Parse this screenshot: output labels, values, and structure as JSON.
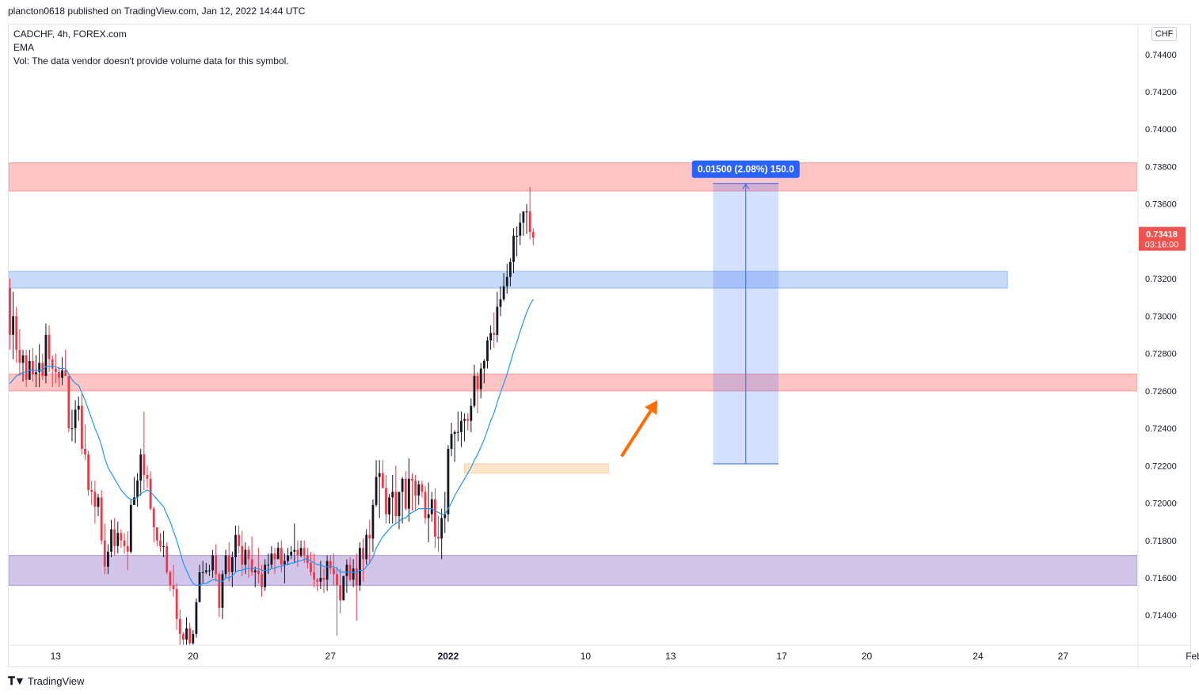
{
  "publisher_line": "plancton0618 published on TradingView.com, Jan 12, 2022 14:44 UTC",
  "legend": {
    "symbol": "CADCHF, 4h, FOREX.com",
    "indicator": "EMA",
    "volume_note": "Vol: The data vendor doesn't provide volume data for this symbol."
  },
  "currency": "CHF",
  "footer": {
    "brand": "TradingView",
    "logo_icon": "tradingview-logo-icon"
  },
  "price_tag": {
    "price": "0.73418",
    "countdown": "03:16:00",
    "value": 0.73418
  },
  "measure_label": "0.01500 (2.08%) 150.0",
  "colors": {
    "bull": "#131722",
    "bear": "#f23645",
    "ema": "#2196f3",
    "resistance_zone": "#ff8a8a",
    "blue_zone": "#90b6f5",
    "purple_zone": "#a58bd6",
    "orange_zone": "#ffcc99",
    "arrow": "#ff6d00",
    "measure_fill": "#2962ff",
    "price_tag": "#ef5350"
  },
  "chart_data": {
    "type": "candlestick",
    "symbol": "CADCHF",
    "timeframe": "4h",
    "ylim": [
      0.7124,
      0.7456
    ],
    "y_ticks": [
      "0.74400",
      "0.74200",
      "0.74000",
      "0.73800",
      "0.73600",
      "0.73200",
      "0.73000",
      "0.72800",
      "0.72600",
      "0.72400",
      "0.72200",
      "0.72000",
      "0.71800",
      "0.71600",
      "0.71400"
    ],
    "y_tick_values": [
      0.744,
      0.742,
      0.74,
      0.738,
      0.736,
      0.732,
      0.73,
      0.728,
      0.726,
      0.724,
      0.722,
      0.72,
      0.718,
      0.716,
      0.714
    ],
    "x_ticks": [
      {
        "label": "13",
        "bar": 14
      },
      {
        "label": "20",
        "bar": 56
      },
      {
        "label": "27",
        "bar": 98
      },
      {
        "label": "2022",
        "bar": 134
      },
      {
        "label": "10",
        "bar": 176
      },
      {
        "label": "13",
        "bar": 202
      },
      {
        "label": "17",
        "bar": 236
      },
      {
        "label": "20",
        "bar": 262
      },
      {
        "label": "24",
        "bar": 296
      },
      {
        "label": "27",
        "bar": 322
      },
      {
        "label": "Feb",
        "bar": 362
      }
    ],
    "zones": [
      {
        "name": "resistance-zone-top",
        "from_bar": -3,
        "to_bar": 400,
        "low": 0.7367,
        "high": 0.7382,
        "color": "resistance_zone"
      },
      {
        "name": "blue-zone",
        "from_bar": -3,
        "to_bar": 305,
        "low": 0.7315,
        "high": 0.7324,
        "color": "blue_zone"
      },
      {
        "name": "resistance-zone-mid",
        "from_bar": -3,
        "to_bar": 400,
        "low": 0.726,
        "high": 0.7269,
        "color": "resistance_zone"
      },
      {
        "name": "purple-zone",
        "from_bar": -3,
        "to_bar": 400,
        "low": 0.7156,
        "high": 0.7172,
        "color": "purple_zone"
      },
      {
        "name": "orange-zone",
        "from_bar": 139,
        "to_bar": 183,
        "low": 0.7216,
        "high": 0.7221,
        "color": "orange_zone"
      }
    ],
    "measure": {
      "from_bar": 215,
      "to_bar": 235,
      "low": 0.7221,
      "high": 0.7371
    },
    "arrow": {
      "from": [
        0.7225,
        187
      ],
      "to": [
        0.7255,
        198
      ]
    },
    "candles": [
      [
        0.7315,
        0.732,
        0.7282,
        0.729
      ],
      [
        0.729,
        0.7313,
        0.7277,
        0.73
      ],
      [
        0.73,
        0.7305,
        0.7275,
        0.7282
      ],
      [
        0.7282,
        0.7293,
        0.7268,
        0.7275
      ],
      [
        0.7275,
        0.7282,
        0.7265,
        0.7279
      ],
      [
        0.7279,
        0.7282,
        0.7262,
        0.7266
      ],
      [
        0.7266,
        0.7282,
        0.7266,
        0.7276
      ],
      [
        0.7276,
        0.7283,
        0.7265,
        0.7269
      ],
      [
        0.7269,
        0.7279,
        0.7262,
        0.727
      ],
      [
        0.727,
        0.7285,
        0.7262,
        0.7275
      ],
      [
        0.7275,
        0.728,
        0.7266,
        0.7268
      ],
      [
        0.7268,
        0.7296,
        0.7264,
        0.729
      ],
      [
        0.729,
        0.7295,
        0.727,
        0.7277
      ],
      [
        0.7277,
        0.7279,
        0.7262,
        0.7272
      ],
      [
        0.7272,
        0.728,
        0.7264,
        0.727
      ],
      [
        0.727,
        0.7273,
        0.7262,
        0.7267
      ],
      [
        0.7267,
        0.7278,
        0.7263,
        0.7271
      ],
      [
        0.7271,
        0.7282,
        0.7268,
        0.7268
      ],
      [
        0.7268,
        0.7268,
        0.7238,
        0.724
      ],
      [
        0.724,
        0.725,
        0.7233,
        0.724
      ],
      [
        0.724,
        0.7255,
        0.7232,
        0.725
      ],
      [
        0.725,
        0.7257,
        0.7244,
        0.7252
      ],
      [
        0.7252,
        0.7259,
        0.7226,
        0.7229
      ],
      [
        0.7229,
        0.7242,
        0.7223,
        0.7226
      ],
      [
        0.7226,
        0.7228,
        0.7204,
        0.7207
      ],
      [
        0.7207,
        0.7212,
        0.7199,
        0.7206
      ],
      [
        0.7206,
        0.7212,
        0.7189,
        0.7198
      ],
      [
        0.7198,
        0.7205,
        0.7193,
        0.7203
      ],
      [
        0.7203,
        0.7207,
        0.7178,
        0.718
      ],
      [
        0.718,
        0.7189,
        0.7162,
        0.7166
      ],
      [
        0.7166,
        0.7178,
        0.7162,
        0.7174
      ],
      [
        0.7174,
        0.7191,
        0.7171,
        0.7186
      ],
      [
        0.7186,
        0.7192,
        0.7172,
        0.7177
      ],
      [
        0.7177,
        0.719,
        0.7173,
        0.7184
      ],
      [
        0.7184,
        0.7186,
        0.7176,
        0.718
      ],
      [
        0.718,
        0.7184,
        0.7173,
        0.7177
      ],
      [
        0.7177,
        0.7185,
        0.7164,
        0.7174
      ],
      [
        0.7174,
        0.7202,
        0.7173,
        0.7199
      ],
      [
        0.7199,
        0.7214,
        0.7199,
        0.7203
      ],
      [
        0.7203,
        0.7216,
        0.7198,
        0.7212
      ],
      [
        0.7212,
        0.7229,
        0.7204,
        0.7226
      ],
      [
        0.7226,
        0.7249,
        0.7207,
        0.7215
      ],
      [
        0.7215,
        0.722,
        0.7208,
        0.7213
      ],
      [
        0.7213,
        0.7217,
        0.7196,
        0.7197
      ],
      [
        0.7197,
        0.7198,
        0.7179,
        0.7187
      ],
      [
        0.7187,
        0.7187,
        0.7177,
        0.718
      ],
      [
        0.718,
        0.7184,
        0.7174,
        0.7177
      ],
      [
        0.7177,
        0.7185,
        0.7171,
        0.7177
      ],
      [
        0.7177,
        0.7179,
        0.7162,
        0.7163
      ],
      [
        0.7163,
        0.7164,
        0.7153,
        0.7156
      ],
      [
        0.7156,
        0.7167,
        0.715,
        0.7154
      ],
      [
        0.7154,
        0.7157,
        0.7132,
        0.7138
      ],
      [
        0.7138,
        0.7143,
        0.7124,
        0.713
      ],
      [
        0.713,
        0.7131,
        0.7124,
        0.7127
      ],
      [
        0.7127,
        0.7139,
        0.7123,
        0.7133
      ],
      [
        0.7133,
        0.7136,
        0.7118,
        0.7125
      ],
      [
        0.7125,
        0.7132,
        0.712,
        0.713
      ],
      [
        0.713,
        0.7149,
        0.7128,
        0.7147
      ],
      [
        0.7147,
        0.7167,
        0.7147,
        0.7163
      ],
      [
        0.7163,
        0.7169,
        0.7157,
        0.7163
      ],
      [
        0.7163,
        0.7168,
        0.7162,
        0.7164
      ],
      [
        0.7164,
        0.7167,
        0.7161,
        0.7164
      ],
      [
        0.7164,
        0.7175,
        0.716,
        0.7172
      ],
      [
        0.7172,
        0.7178,
        0.7158,
        0.7162
      ],
      [
        0.7162,
        0.7163,
        0.7139,
        0.7144
      ],
      [
        0.7144,
        0.7164,
        0.7138,
        0.7162
      ],
      [
        0.7162,
        0.7175,
        0.716,
        0.7172
      ],
      [
        0.7172,
        0.7179,
        0.7158,
        0.7163
      ],
      [
        0.7163,
        0.7174,
        0.7155,
        0.7171
      ],
      [
        0.7171,
        0.7188,
        0.7163,
        0.7183
      ],
      [
        0.7183,
        0.7188,
        0.7173,
        0.7177
      ],
      [
        0.7177,
        0.7185,
        0.7161,
        0.7167
      ],
      [
        0.7167,
        0.7179,
        0.7162,
        0.7175
      ],
      [
        0.7175,
        0.7177,
        0.716,
        0.717
      ],
      [
        0.717,
        0.7182,
        0.7161,
        0.7163
      ],
      [
        0.7163,
        0.7166,
        0.7155,
        0.7164
      ],
      [
        0.7164,
        0.7176,
        0.7157,
        0.7162
      ],
      [
        0.7162,
        0.7167,
        0.715,
        0.7155
      ],
      [
        0.7155,
        0.717,
        0.7153,
        0.7167
      ],
      [
        0.7167,
        0.7173,
        0.7162,
        0.7167
      ],
      [
        0.7167,
        0.7177,
        0.7165,
        0.7173
      ],
      [
        0.7173,
        0.7176,
        0.7162,
        0.717
      ],
      [
        0.717,
        0.7179,
        0.717,
        0.7176
      ],
      [
        0.7176,
        0.718,
        0.7163,
        0.7167
      ],
      [
        0.7167,
        0.7173,
        0.7157,
        0.7169
      ],
      [
        0.7169,
        0.7176,
        0.7167,
        0.7172
      ],
      [
        0.7172,
        0.7177,
        0.717,
        0.7174
      ],
      [
        0.7174,
        0.7189,
        0.7168,
        0.7175
      ],
      [
        0.7175,
        0.718,
        0.7166,
        0.7172
      ],
      [
        0.7172,
        0.718,
        0.7171,
        0.7176
      ],
      [
        0.7176,
        0.718,
        0.7168,
        0.7172
      ],
      [
        0.7172,
        0.7176,
        0.7165,
        0.7168
      ],
      [
        0.7168,
        0.7174,
        0.7161,
        0.7163
      ],
      [
        0.7163,
        0.7173,
        0.7155,
        0.7159
      ],
      [
        0.7159,
        0.716,
        0.7153,
        0.7158
      ],
      [
        0.7158,
        0.7169,
        0.7154,
        0.716
      ],
      [
        0.716,
        0.7165,
        0.7152,
        0.7159
      ],
      [
        0.7159,
        0.7172,
        0.7153,
        0.7169
      ],
      [
        0.7169,
        0.7172,
        0.7162,
        0.7165
      ],
      [
        0.7165,
        0.7173,
        0.7156,
        0.7162
      ],
      [
        0.7162,
        0.7166,
        0.7129,
        0.7156
      ],
      [
        0.7156,
        0.7165,
        0.7141,
        0.7148
      ],
      [
        0.7148,
        0.7161,
        0.7148,
        0.7161
      ],
      [
        0.7161,
        0.717,
        0.7152,
        0.7167
      ],
      [
        0.7167,
        0.7171,
        0.7158,
        0.7159
      ],
      [
        0.7159,
        0.717,
        0.7155,
        0.7165
      ],
      [
        0.7165,
        0.7173,
        0.7137,
        0.7156
      ],
      [
        0.7156,
        0.7179,
        0.7153,
        0.7176
      ],
      [
        0.7176,
        0.7181,
        0.7158,
        0.717
      ],
      [
        0.717,
        0.7186,
        0.7167,
        0.7183
      ],
      [
        0.7183,
        0.7191,
        0.7168,
        0.7181
      ],
      [
        0.7181,
        0.7202,
        0.7174,
        0.7199
      ],
      [
        0.7199,
        0.7223,
        0.7198,
        0.7214
      ],
      [
        0.7214,
        0.7223,
        0.7192,
        0.7216
      ],
      [
        0.7216,
        0.7223,
        0.7208,
        0.7208
      ],
      [
        0.7208,
        0.7215,
        0.7189,
        0.7194
      ],
      [
        0.7194,
        0.7205,
        0.7189,
        0.7203
      ],
      [
        0.7203,
        0.7215,
        0.7189,
        0.7206
      ],
      [
        0.7206,
        0.722,
        0.7189,
        0.7193
      ],
      [
        0.7193,
        0.7206,
        0.7186,
        0.7206
      ],
      [
        0.7206,
        0.7214,
        0.7189,
        0.7213
      ],
      [
        0.7213,
        0.7217,
        0.7196,
        0.7197
      ],
      [
        0.7197,
        0.7224,
        0.719,
        0.7213
      ],
      [
        0.7213,
        0.7216,
        0.7196,
        0.7212
      ],
      [
        0.7212,
        0.7215,
        0.7196,
        0.7204
      ],
      [
        0.7204,
        0.7212,
        0.7199,
        0.721
      ],
      [
        0.721,
        0.7212,
        0.7203,
        0.7206
      ],
      [
        0.7206,
        0.7209,
        0.7189,
        0.7192
      ],
      [
        0.7192,
        0.7211,
        0.7179,
        0.7194
      ],
      [
        0.7194,
        0.7206,
        0.719,
        0.7202
      ],
      [
        0.7202,
        0.7208,
        0.7176,
        0.7182
      ],
      [
        0.7182,
        0.7193,
        0.7174,
        0.7181
      ],
      [
        0.7181,
        0.7197,
        0.717,
        0.7192
      ],
      [
        0.7192,
        0.7206,
        0.7184,
        0.7194
      ],
      [
        0.7194,
        0.7231,
        0.719,
        0.7229
      ],
      [
        0.7229,
        0.7243,
        0.7225,
        0.7237
      ],
      [
        0.7237,
        0.7239,
        0.7222,
        0.7238
      ],
      [
        0.7238,
        0.7249,
        0.7233,
        0.7238
      ],
      [
        0.7238,
        0.7249,
        0.723,
        0.7244
      ],
      [
        0.7244,
        0.7248,
        0.7233,
        0.7245
      ],
      [
        0.7245,
        0.7248,
        0.7239,
        0.7244
      ],
      [
        0.7244,
        0.7256,
        0.7238,
        0.7252
      ],
      [
        0.7252,
        0.7274,
        0.7251,
        0.7268
      ],
      [
        0.7268,
        0.727,
        0.7248,
        0.7261
      ],
      [
        0.7261,
        0.7275,
        0.7256,
        0.7272
      ],
      [
        0.7272,
        0.7277,
        0.7264,
        0.7276
      ],
      [
        0.7276,
        0.7289,
        0.7272,
        0.7287
      ],
      [
        0.7287,
        0.7295,
        0.7282,
        0.7291
      ],
      [
        0.7291,
        0.7302,
        0.7283,
        0.729
      ],
      [
        0.729,
        0.7313,
        0.7286,
        0.7305
      ],
      [
        0.7305,
        0.7316,
        0.73,
        0.7309
      ],
      [
        0.7309,
        0.7323,
        0.7308,
        0.7316
      ],
      [
        0.7316,
        0.7328,
        0.7312,
        0.7321
      ],
      [
        0.7321,
        0.7331,
        0.7316,
        0.7329
      ],
      [
        0.7329,
        0.7347,
        0.7323,
        0.7343
      ],
      [
        0.7343,
        0.7348,
        0.7332,
        0.7343
      ],
      [
        0.7343,
        0.7355,
        0.7338,
        0.735
      ],
      [
        0.735,
        0.7354,
        0.7343,
        0.7356
      ],
      [
        0.7356,
        0.736,
        0.7344,
        0.7356
      ],
      [
        0.7356,
        0.7369,
        0.7341,
        0.7345
      ],
      [
        0.7345,
        0.7347,
        0.7338,
        0.7342
      ]
    ],
    "ema": [
      0.7264,
      0.7266,
      0.7268,
      0.7269,
      0.727,
      0.727,
      0.7271,
      0.7271,
      0.7271,
      0.7271,
      0.7271,
      0.7273,
      0.7273,
      0.7273,
      0.7273,
      0.7272,
      0.7272,
      0.7272,
      0.7269,
      0.7266,
      0.7264,
      0.7263,
      0.7259,
      0.7255,
      0.725,
      0.7245,
      0.724,
      0.7236,
      0.7231,
      0.7224,
      0.7219,
      0.7216,
      0.7213,
      0.721,
      0.7207,
      0.7205,
      0.7203,
      0.7202,
      0.7202,
      0.7203,
      0.7205,
      0.7206,
      0.7207,
      0.7206,
      0.7204,
      0.7202,
      0.72,
      0.7198,
      0.7194,
      0.719,
      0.7185,
      0.718,
      0.7174,
      0.7168,
      0.7164,
      0.716,
      0.7157,
      0.7156,
      0.7156,
      0.7157,
      0.7157,
      0.7158,
      0.7159,
      0.7159,
      0.7158,
      0.7158,
      0.716,
      0.716,
      0.7161,
      0.7163,
      0.7164,
      0.7164,
      0.7165,
      0.7165,
      0.7165,
      0.7165,
      0.7165,
      0.7164,
      0.7164,
      0.7164,
      0.7165,
      0.7165,
      0.7166,
      0.7166,
      0.7167,
      0.7167,
      0.7168,
      0.7168,
      0.7169,
      0.7169,
      0.717,
      0.717,
      0.7169,
      0.7168,
      0.7167,
      0.7167,
      0.7166,
      0.7166,
      0.7166,
      0.7166,
      0.7165,
      0.7163,
      0.7163,
      0.7163,
      0.7163,
      0.7163,
      0.7163,
      0.7164,
      0.7164,
      0.7166,
      0.7168,
      0.7171,
      0.7176,
      0.7179,
      0.7182,
      0.7184,
      0.7186,
      0.7188,
      0.7189,
      0.719,
      0.7192,
      0.7192,
      0.7194,
      0.7195,
      0.7196,
      0.7197,
      0.7197,
      0.7197,
      0.7197,
      0.7197,
      0.7196,
      0.7195,
      0.7194,
      0.7194,
      0.7197,
      0.72,
      0.7204,
      0.7207,
      0.721,
      0.7213,
      0.7216,
      0.7219,
      0.7223,
      0.7226,
      0.723,
      0.7234,
      0.7239,
      0.7244,
      0.7248,
      0.7254,
      0.7259,
      0.7264,
      0.7269,
      0.7275,
      0.7281,
      0.7286,
      0.7292,
      0.7297,
      0.7302,
      0.7306,
      0.7309
    ]
  }
}
